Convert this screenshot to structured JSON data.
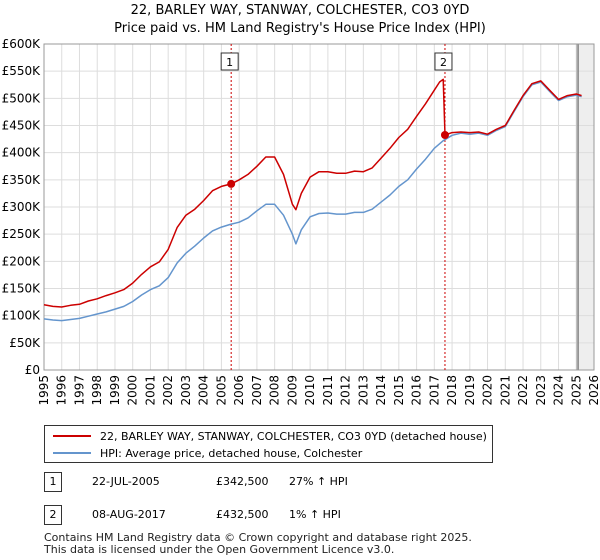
{
  "title": "22, BARLEY WAY, STANWAY, COLCHESTER, CO3 0YD",
  "subtitle": "Price paid vs. HM Land Registry's House Price Index (HPI)",
  "colors": {
    "property": "#cc0000",
    "hpi": "#6495cd",
    "grid": "#dddddd",
    "vline": "#cc0000"
  },
  "chart_data": {
    "type": "line",
    "title": "Price paid vs. HM Land Registry's House Price Index (HPI)",
    "xlim": [
      1995,
      2026
    ],
    "ylim": [
      0,
      600000
    ],
    "y_ticks": [
      0,
      50000,
      100000,
      150000,
      200000,
      250000,
      300000,
      350000,
      400000,
      450000,
      500000,
      550000,
      600000
    ],
    "y_tick_labels": [
      "£0",
      "£50K",
      "£100K",
      "£150K",
      "£200K",
      "£250K",
      "£300K",
      "£350K",
      "£400K",
      "£450K",
      "£500K",
      "£550K",
      "£600K"
    ],
    "x_ticks": [
      1995,
      1996,
      1997,
      1998,
      1999,
      2000,
      2001,
      2002,
      2003,
      2004,
      2005,
      2006,
      2007,
      2008,
      2009,
      2010,
      2011,
      2012,
      2013,
      2014,
      2015,
      2016,
      2017,
      2018,
      2019,
      2020,
      2021,
      2022,
      2023,
      2024,
      2025,
      2026
    ],
    "series": [
      {
        "name": "22, BARLEY WAY, STANWAY, COLCHESTER, CO3 0YD (detached house)",
        "points": [
          [
            1995.0,
            120000
          ],
          [
            1995.5,
            117000
          ],
          [
            1996.0,
            116000
          ],
          [
            1996.5,
            119000
          ],
          [
            1997.0,
            121000
          ],
          [
            1997.5,
            127000
          ],
          [
            1998.0,
            131000
          ],
          [
            1998.5,
            137000
          ],
          [
            1999.0,
            142000
          ],
          [
            1999.5,
            148000
          ],
          [
            2000.0,
            160000
          ],
          [
            2000.5,
            176000
          ],
          [
            2001.0,
            190000
          ],
          [
            2001.5,
            199000
          ],
          [
            2002.0,
            222000
          ],
          [
            2002.5,
            262000
          ],
          [
            2003.0,
            285000
          ],
          [
            2003.5,
            296000
          ],
          [
            2004.0,
            312000
          ],
          [
            2004.5,
            330000
          ],
          [
            2005.0,
            338000
          ],
          [
            2005.55,
            342500
          ],
          [
            2006.0,
            350000
          ],
          [
            2006.5,
            360000
          ],
          [
            2007.0,
            375000
          ],
          [
            2007.5,
            392000
          ],
          [
            2008.0,
            392000
          ],
          [
            2008.5,
            360000
          ],
          [
            2009.0,
            305000
          ],
          [
            2009.2,
            295000
          ],
          [
            2009.5,
            325000
          ],
          [
            2010.0,
            355000
          ],
          [
            2010.5,
            365000
          ],
          [
            2011.0,
            365000
          ],
          [
            2011.5,
            362000
          ],
          [
            2012.0,
            362000
          ],
          [
            2012.5,
            366000
          ],
          [
            2013.0,
            365000
          ],
          [
            2013.5,
            372000
          ],
          [
            2014.0,
            390000
          ],
          [
            2014.5,
            408000
          ],
          [
            2015.0,
            428000
          ],
          [
            2015.5,
            443000
          ],
          [
            2016.0,
            467000
          ],
          [
            2016.5,
            490000
          ],
          [
            2017.0,
            515000
          ],
          [
            2017.3,
            530000
          ],
          [
            2017.5,
            535000
          ],
          [
            2017.6,
            432500
          ],
          [
            2018.0,
            437000
          ],
          [
            2018.5,
            438000
          ],
          [
            2019.0,
            437000
          ],
          [
            2019.5,
            438000
          ],
          [
            2020.0,
            434000
          ],
          [
            2020.5,
            443000
          ],
          [
            2021.0,
            450000
          ],
          [
            2021.5,
            478000
          ],
          [
            2022.0,
            505000
          ],
          [
            2022.5,
            527000
          ],
          [
            2023.0,
            532000
          ],
          [
            2023.5,
            515000
          ],
          [
            2024.0,
            498000
          ],
          [
            2024.5,
            505000
          ],
          [
            2025.0,
            508000
          ],
          [
            2025.3,
            505000
          ]
        ]
      },
      {
        "name": "HPI: Average price, detached house, Colchester",
        "points": [
          [
            1995.0,
            94000
          ],
          [
            1995.5,
            92000
          ],
          [
            1996.0,
            91000
          ],
          [
            1996.5,
            93000
          ],
          [
            1997.0,
            95000
          ],
          [
            1997.5,
            99000
          ],
          [
            1998.0,
            103000
          ],
          [
            1998.5,
            107000
          ],
          [
            1999.0,
            112000
          ],
          [
            1999.5,
            117000
          ],
          [
            2000.0,
            126000
          ],
          [
            2000.5,
            138000
          ],
          [
            2001.0,
            148000
          ],
          [
            2001.5,
            155000
          ],
          [
            2002.0,
            170000
          ],
          [
            2002.5,
            197000
          ],
          [
            2003.0,
            215000
          ],
          [
            2003.5,
            228000
          ],
          [
            2004.0,
            243000
          ],
          [
            2004.5,
            256000
          ],
          [
            2005.0,
            263000
          ],
          [
            2005.5,
            268000
          ],
          [
            2006.0,
            272000
          ],
          [
            2006.5,
            280000
          ],
          [
            2007.0,
            293000
          ],
          [
            2007.5,
            305000
          ],
          [
            2008.0,
            305000
          ],
          [
            2008.5,
            285000
          ],
          [
            2009.0,
            250000
          ],
          [
            2009.2,
            232000
          ],
          [
            2009.5,
            258000
          ],
          [
            2010.0,
            282000
          ],
          [
            2010.5,
            288000
          ],
          [
            2011.0,
            289000
          ],
          [
            2011.5,
            287000
          ],
          [
            2012.0,
            287000
          ],
          [
            2012.5,
            290000
          ],
          [
            2013.0,
            290000
          ],
          [
            2013.5,
            296000
          ],
          [
            2014.0,
            309000
          ],
          [
            2014.5,
            322000
          ],
          [
            2015.0,
            338000
          ],
          [
            2015.5,
            350000
          ],
          [
            2016.0,
            370000
          ],
          [
            2016.5,
            388000
          ],
          [
            2017.0,
            408000
          ],
          [
            2017.5,
            422000
          ],
          [
            2018.0,
            432000
          ],
          [
            2018.5,
            436000
          ],
          [
            2019.0,
            434000
          ],
          [
            2019.5,
            436000
          ],
          [
            2020.0,
            432000
          ],
          [
            2020.5,
            441000
          ],
          [
            2021.0,
            448000
          ],
          [
            2021.5,
            476000
          ],
          [
            2022.0,
            503000
          ],
          [
            2022.5,
            525000
          ],
          [
            2023.0,
            530000
          ],
          [
            2023.5,
            513000
          ],
          [
            2024.0,
            496000
          ],
          [
            2024.5,
            503000
          ],
          [
            2025.0,
            506000
          ],
          [
            2025.3,
            503000
          ]
        ]
      }
    ],
    "annotations": [
      {
        "label": "1",
        "x": 2005.55,
        "y": 342500
      },
      {
        "label": "2",
        "x": 2017.6,
        "y": 432500
      }
    ]
  },
  "legend": {
    "property": "22, BARLEY WAY, STANWAY, COLCHESTER, CO3 0YD (detached house)",
    "hpi": "HPI: Average price, detached house, Colchester"
  },
  "transactions": [
    {
      "badge": "1",
      "date": "22-JUL-2005",
      "price": "£342,500",
      "hpi": "27% ↑ HPI"
    },
    {
      "badge": "2",
      "date": "08-AUG-2017",
      "price": "£432,500",
      "hpi": "1% ↑ HPI"
    }
  ],
  "footer": {
    "line1": "Contains HM Land Registry data © Crown copyright and database right 2025.",
    "line2": "This data is licensed under the Open Government Licence v3.0."
  }
}
